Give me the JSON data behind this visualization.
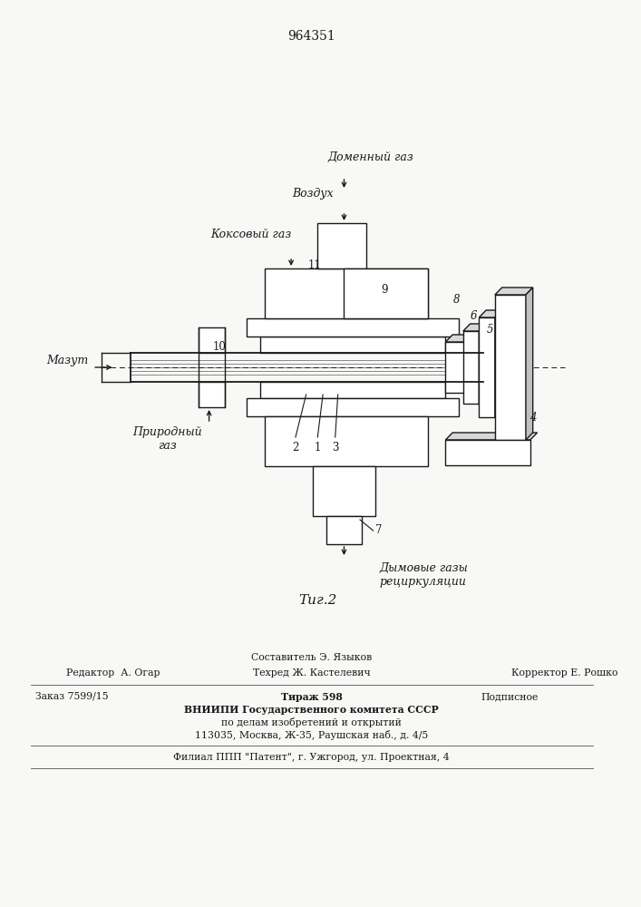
{
  "patent_number": "964351",
  "fig_label": "Τиг.2",
  "labels": {
    "domenny_gaz": "Доменный газ",
    "vozdukh": "Воздух",
    "koksovy_gaz": "Коксовый газ",
    "mazut": "Мазут",
    "prirodny_gaz": "Природный\nгаз",
    "dymovye_gazy": "Дымовые газы\nрециркуляции"
  },
  "footer": {
    "sostavitel": "Составитель Э. Языков",
    "tehred": "Техред Ж. Кастелевич",
    "korrektor": "Корректор Е. Рошко",
    "redaktor": "Редактор  А. Огар",
    "zakaz": "Заказ 7599/15",
    "tirazh": "Тираж 598",
    "podpisnoe": "Подписное",
    "vniipи": "ВНИИПИ Государственного комитета СССР",
    "po_delam": "по делам изобретений и открытий",
    "address": "113035, Москва, Ж-35, Раушская наб., д. 4/5",
    "filial": "Филиал ППП \"Патент\", г. Ужгород, ул. Проектная, 4"
  },
  "bg_color": "#f8f8f6",
  "line_color": "#1a1a1a"
}
